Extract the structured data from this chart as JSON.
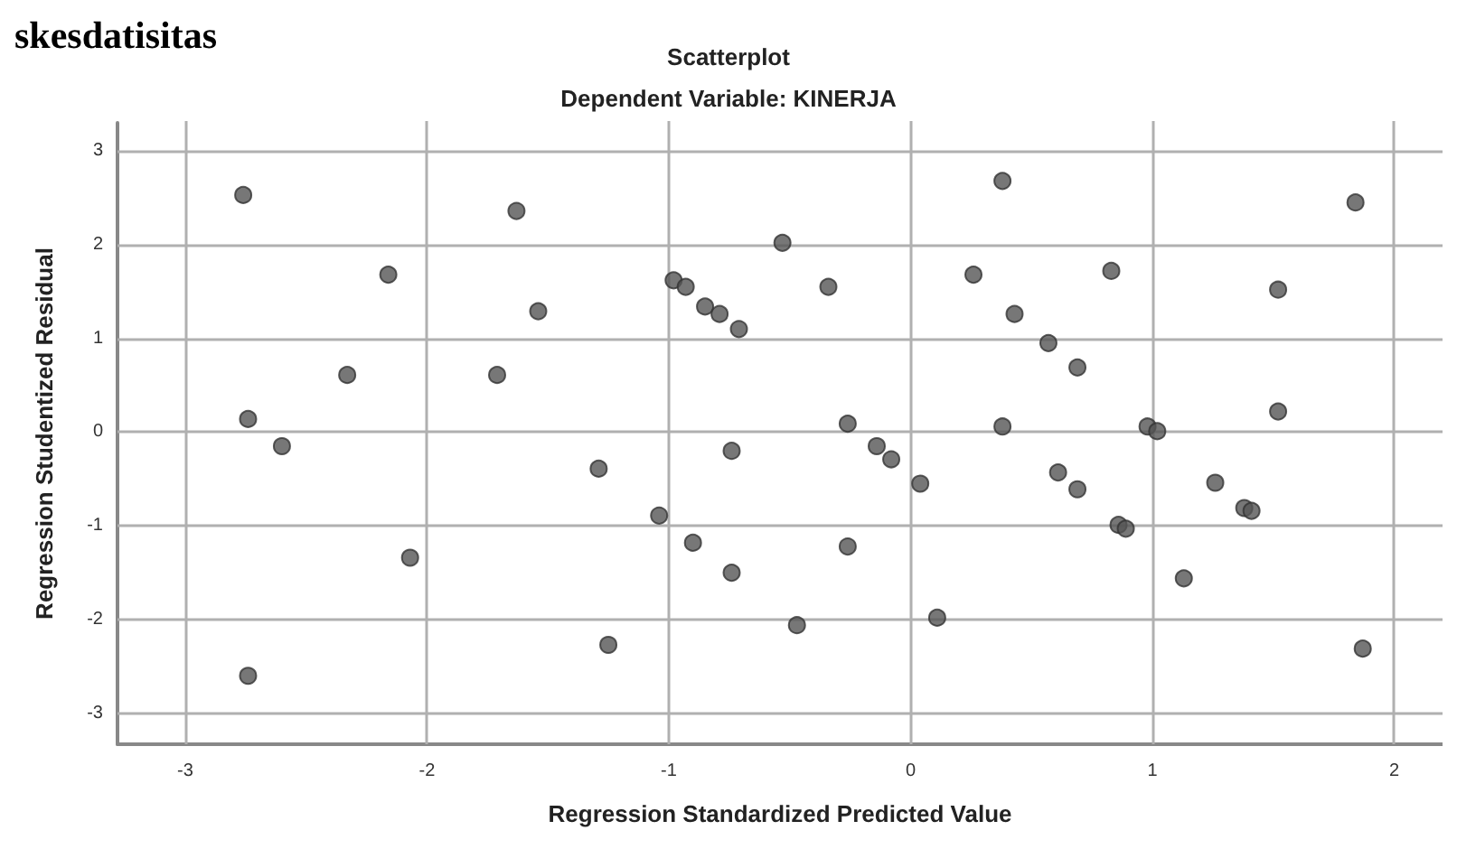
{
  "chart_data": {
    "type": "scatter",
    "title": "Scatterplot",
    "subtitle": "Dependent Variable: KINERJA",
    "xlabel": "Regression Standardized Predicted Value",
    "ylabel": "Regression Studentized Residual",
    "annotations": [
      "skesdatisitas"
    ],
    "x": [
      -2.76,
      -2.74,
      -2.6,
      -2.74,
      -2.33,
      -2.16,
      -2.07,
      -1.71,
      -1.63,
      -1.54,
      -1.29,
      -1.25,
      -1.04,
      -0.98,
      -0.93,
      -0.9,
      -0.85,
      -0.79,
      -0.74,
      -0.74,
      -0.71,
      -0.53,
      -0.47,
      -0.34,
      -0.26,
      -0.26,
      -0.14,
      -0.08,
      0.04,
      0.11,
      0.38,
      0.26,
      0.43,
      0.38,
      0.57,
      0.61,
      0.69,
      0.69,
      0.83,
      0.86,
      0.89,
      0.98,
      1.02,
      1.13,
      1.26,
      1.38,
      1.41,
      1.52,
      1.52,
      1.84,
      1.87
    ],
    "values": [
      2.53,
      0.14,
      -0.15,
      -2.6,
      0.61,
      1.68,
      -1.34,
      0.61,
      2.36,
      1.29,
      -0.39,
      -2.27,
      -0.89,
      1.62,
      1.55,
      -1.18,
      1.34,
      1.26,
      -1.5,
      -0.2,
      1.1,
      2.02,
      -2.06,
      1.55,
      0.09,
      -1.22,
      -0.15,
      -0.29,
      -0.55,
      -1.98,
      2.68,
      1.68,
      1.26,
      0.06,
      0.95,
      -0.43,
      0.69,
      -0.61,
      1.72,
      -0.99,
      -1.03,
      0.06,
      0.01,
      -1.56,
      -0.54,
      -0.81,
      -0.84,
      1.52,
      0.22,
      2.45,
      -2.31
    ],
    "color": "#555555",
    "marker": "circle",
    "grid": true,
    "xlim": [
      -3.28,
      2.2
    ],
    "xticks": [
      -3,
      -2,
      -1,
      0,
      1,
      2
    ],
    "ylim": [
      -3.33,
      3.3
    ],
    "yticks": [
      -3,
      -2,
      -1,
      0,
      1,
      2,
      3
    ]
  }
}
